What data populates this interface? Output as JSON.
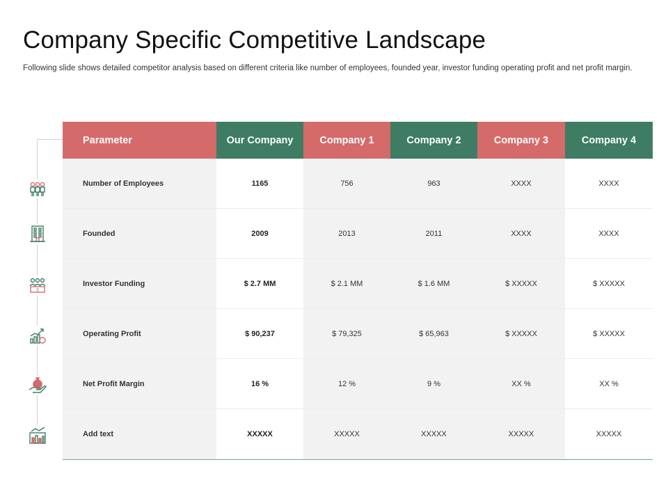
{
  "header": {
    "title": "Company Specific Competitive Landscape",
    "subtitle": "Following slide shows detailed competitor analysis based on different  criteria like number of employees, founded year, investor funding operating profit and net profit margin."
  },
  "colors": {
    "header_red": "#d46b6a",
    "header_green": "#3e7d63",
    "row_shade": "#f2f2f2",
    "bottom_rule": "#6fa696"
  },
  "table": {
    "columns": [
      "Parameter",
      "Our Company",
      "Company 1",
      "Company 2",
      "Company 3",
      "Company 4"
    ],
    "rows": [
      {
        "icon": "employees-icon",
        "cells": [
          "Number of Employees",
          "1165",
          "756",
          "963",
          "XXXX",
          "XXXX"
        ]
      },
      {
        "icon": "building-icon",
        "cells": [
          "Founded",
          "2009",
          "2013",
          "2011",
          "XXXX",
          "XXXX"
        ]
      },
      {
        "icon": "investor-funding-icon",
        "cells": [
          "Investor Funding",
          "$ 2.7 MM",
          "$ 2.1 MM",
          "$ 1.6 MM",
          "$ XXXXX",
          "$ XXXXX"
        ]
      },
      {
        "icon": "growth-chart-icon",
        "cells": [
          "Operating Profit",
          "$ 90,237",
          "$ 79,325",
          "$ 65,963",
          "$ XXXXX",
          "$ XXXXX"
        ]
      },
      {
        "icon": "money-bag-hand-icon",
        "cells": [
          "Net Profit Margin",
          "16 %",
          "12 %",
          "9 %",
          "XX  %",
          "XX  %"
        ]
      },
      {
        "icon": "bar-chart-icon",
        "cells": [
          "Add  text",
          "XXXXX",
          "XXXXX",
          "XXXXX",
          "XXXXX",
          "XXXXX"
        ]
      }
    ]
  }
}
